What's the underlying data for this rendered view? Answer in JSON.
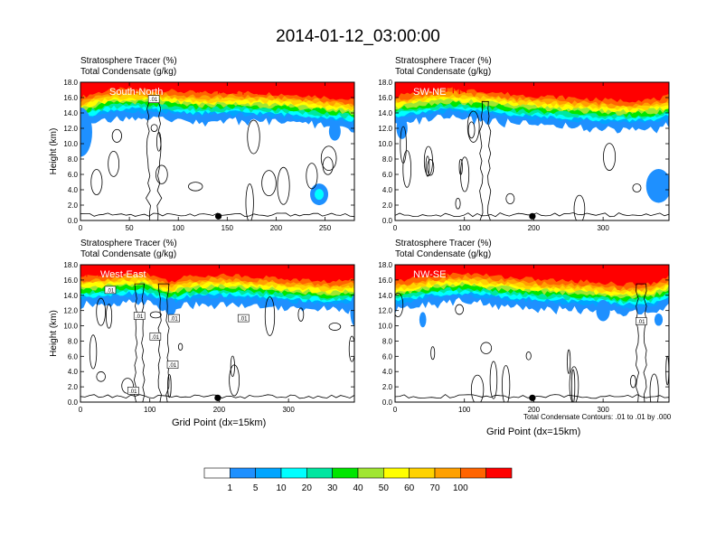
{
  "title": "2014-01-12_03:00:00",
  "footnote": "Total Condensate Contours: .01 to .01 by .000",
  "colors": {
    "levels": [
      "#ffffff",
      "#1e90ff",
      "#00a5ff",
      "#00ffff",
      "#00e6a0",
      "#00e600",
      "#a0e632",
      "#ffff00",
      "#ffd200",
      "#ffa000",
      "#ff6400",
      "#ff0000"
    ],
    "contour": "#000000"
  },
  "colorbar": {
    "labels": [
      "1",
      "5",
      "10",
      "20",
      "30",
      "40",
      "50",
      "60",
      "70",
      "100"
    ]
  },
  "chart_data": [
    {
      "type": "heatmap",
      "name": "South-North",
      "label1": "Stratosphere Tracer   (%)",
      "label2": "Total Condensate   (g/kg)",
      "ylabel": "Height (km)",
      "xlabel": "",
      "xlim": [
        0,
        280
      ],
      "xticks": [
        0,
        50,
        100,
        150,
        200,
        250
      ],
      "ylim": [
        0,
        18
      ],
      "yticks": [
        "0.0",
        "2.0",
        "4.0",
        "6.0",
        "8.0",
        "10.0",
        "12.0",
        "14.0",
        "16.0",
        "18.0"
      ],
      "tropopause": [
        [
          0,
          15.2
        ],
        [
          10,
          15.6
        ],
        [
          30,
          16.2
        ],
        [
          50,
          16.3
        ],
        [
          80,
          16.2
        ],
        [
          120,
          15.8
        ],
        [
          160,
          15.9
        ],
        [
          200,
          15.7
        ],
        [
          240,
          15.4
        ],
        [
          270,
          15.0
        ],
        [
          280,
          14.8
        ]
      ],
      "contour_labels": [
        {
          "x": 75,
          "y": 15.8,
          "text": ".01"
        }
      ],
      "marker_x": 141
    },
    {
      "type": "heatmap",
      "name": "SW-NE",
      "label1": "Stratosphere Tracer   (%)",
      "label2": "Total Condensate   (g/kg)",
      "ylabel": "",
      "xlabel": "",
      "xlim": [
        0,
        395
      ],
      "xticks": [
        0,
        100,
        200,
        300
      ],
      "ylim": [
        0,
        18
      ],
      "yticks": [
        "0.0",
        "2.0",
        "4.0",
        "6.0",
        "8.0",
        "10.0",
        "12.0",
        "14.0",
        "16.0",
        "18.0"
      ],
      "tropopause": [
        [
          0,
          15.4
        ],
        [
          40,
          16.0
        ],
        [
          80,
          16.3
        ],
        [
          130,
          16.0
        ],
        [
          180,
          15.5
        ],
        [
          230,
          15.3
        ],
        [
          280,
          15.0
        ],
        [
          330,
          14.8
        ],
        [
          380,
          15.0
        ],
        [
          395,
          15.4
        ]
      ],
      "contour_labels": [],
      "marker_x": 198
    },
    {
      "type": "heatmap",
      "name": "West-East",
      "label1": "Stratosphere Tracer   (%)",
      "label2": "Total Condensate   (g/kg)",
      "ylabel": "Height (km)",
      "xlabel": "Grid Point (dx=15km)",
      "xlim": [
        0,
        395
      ],
      "xticks": [
        0,
        100,
        200,
        300
      ],
      "ylim": [
        0,
        18
      ],
      "yticks": [
        "0.0",
        "2.0",
        "4.0",
        "6.0",
        "8.0",
        "10.0",
        "12.0",
        "14.0",
        "16.0",
        "18.0"
      ],
      "tropopause": [
        [
          0,
          15.6
        ],
        [
          40,
          15.9
        ],
        [
          90,
          16.2
        ],
        [
          130,
          15.0
        ],
        [
          150,
          15.6
        ],
        [
          200,
          15.9
        ],
        [
          260,
          15.6
        ],
        [
          320,
          15.2
        ],
        [
          360,
          15.0
        ],
        [
          395,
          15.2
        ]
      ],
      "contour_labels": [
        {
          "x": 43,
          "y": 14.7,
          "text": ".01"
        },
        {
          "x": 85,
          "y": 11.3,
          "text": ".01"
        },
        {
          "x": 108,
          "y": 8.6,
          "text": ".01"
        },
        {
          "x": 135,
          "y": 11.0,
          "text": ".01"
        },
        {
          "x": 133,
          "y": 4.9,
          "text": ".01"
        },
        {
          "x": 76,
          "y": 1.5,
          "text": ".01"
        },
        {
          "x": 235,
          "y": 11.0,
          "text": ".01"
        }
      ],
      "marker_x": 198
    },
    {
      "type": "heatmap",
      "name": "NW-SE",
      "label1": "Stratosphere Tracer   (%)",
      "label2": "Total Condensate   (g/kg)",
      "ylabel": "",
      "xlabel": "Grid Point (dx=15km)",
      "xlim": [
        0,
        395
      ],
      "xticks": [
        0,
        100,
        200,
        300
      ],
      "ylim": [
        0,
        18
      ],
      "yticks": [
        "0.0",
        "2.0",
        "4.0",
        "6.0",
        "8.0",
        "10.0",
        "12.0",
        "14.0",
        "16.0",
        "18.0"
      ],
      "tropopause": [
        [
          0,
          15.0
        ],
        [
          50,
          15.8
        ],
        [
          100,
          16.1
        ],
        [
          160,
          15.6
        ],
        [
          220,
          15.2
        ],
        [
          280,
          15.0
        ],
        [
          330,
          14.6
        ],
        [
          370,
          14.8
        ],
        [
          395,
          15.6
        ]
      ],
      "contour_labels": [
        {
          "x": 355,
          "y": 10.6,
          "text": ".01"
        }
      ],
      "marker_x": 198
    }
  ]
}
